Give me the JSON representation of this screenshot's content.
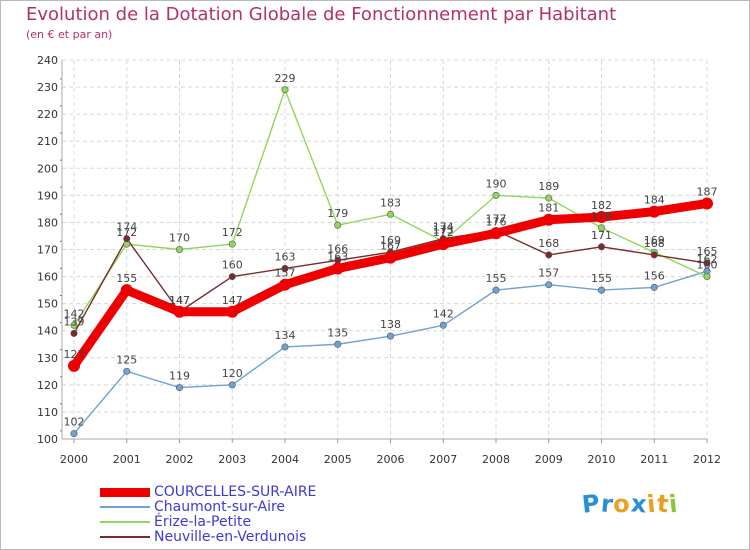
{
  "title": "Evolution de la Dotation Globale de Fonctionnement par Habitant",
  "subtitle": "(en € et par an)",
  "logo": {
    "text": "Proxiti",
    "letters": [
      "P",
      "r",
      "o",
      "x",
      "i",
      "t",
      "i"
    ],
    "colors": [
      "#2a8fd6",
      "#2a8fd6",
      "#e8a020",
      "#2a8fd6",
      "#e8a020",
      "#e8a020",
      "#8ac43f"
    ]
  },
  "chart_data": {
    "type": "line",
    "title": "Evolution de la Dotation Globale de Fonctionnement par Habitant",
    "subtitle": "(en € et par an)",
    "xlabel": "",
    "ylabel": "",
    "ylim": [
      100,
      240
    ],
    "yticks": [
      100,
      110,
      120,
      130,
      140,
      150,
      160,
      170,
      180,
      190,
      200,
      210,
      220,
      230,
      240
    ],
    "grid": true,
    "categories": [
      "2000",
      "2001",
      "2002",
      "2003",
      "2004",
      "2005",
      "2006",
      "2007",
      "2008",
      "2009",
      "2010",
      "2011",
      "2012"
    ],
    "series": [
      {
        "name": "COURCELLES-SUR-AIRE",
        "color": "#ee0000",
        "values": [
          127,
          155,
          147,
          147,
          157,
          163,
          167,
          172,
          176,
          181,
          182,
          184,
          187
        ]
      },
      {
        "name": "Chaumont-sur-Aire",
        "color": "#6fa3d4",
        "values": [
          102,
          125,
          119,
          120,
          134,
          135,
          138,
          142,
          155,
          157,
          155,
          156,
          162
        ]
      },
      {
        "name": "Érize-la-Petite",
        "color": "#8fd85a",
        "values": [
          142,
          172,
          170,
          172,
          229,
          179,
          183,
          173,
          190,
          189,
          178,
          169,
          160
        ]
      },
      {
        "name": "Neuville-en-Verdunois",
        "color": "#7a2a2a",
        "values": [
          139,
          174,
          147,
          160,
          163,
          166,
          169,
          174,
          177,
          168,
          171,
          168,
          165
        ]
      }
    ]
  }
}
